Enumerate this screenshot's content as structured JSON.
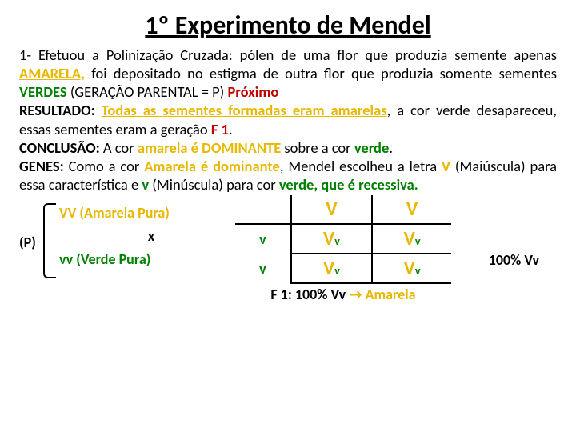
{
  "title": "1º Experimento de Mendel",
  "para": {
    "p1a": "1- Efetuou a Polinização Cruzada: pólen de uma flor que produzia semente apenas ",
    "amarela": "AMARELA,",
    "p1b": " foi depositado no estigma de outra flor que produzia somente sementes ",
    "verdes": "VERDES",
    "p1c": " (GERAÇÃO PARENTAL = P) ",
    "proximo": "Próximo",
    "res_lbl": "RESULTADO: ",
    "res_a": "Todas as sementes formadas eram amarelas",
    "res_b": ", a cor verde desapareceu, essas sementes eram a geração ",
    "f1": "F 1",
    "dot1": ".",
    "con_lbl": "CONCLUSÃO:",
    "con_a": " A cor ",
    "con_b": "amarela é DOMINANTE",
    "con_c": " sobre a cor ",
    "con_d": "verde",
    "gen_lbl": "GENES:",
    "gen_a": " Como a cor ",
    "gen_b": "Amarela é dominante",
    "gen_c": ", Mendel escolheu a letra ",
    "gen_d": "V",
    "gen_e": " (Maiúscula) para essa característica e ",
    "gen_f": "v",
    "gen_g": " (Minúscula) para cor ",
    "gen_h": "verde, que é recessiva."
  },
  "cross": {
    "p_label": "(P)",
    "line1": "VV (Amarela Pura)",
    "x": "x",
    "line2": "vv (Verde Pura)"
  },
  "punnett": {
    "col1": "V",
    "col2": "V",
    "row1": "v",
    "row2": "v",
    "cell_big": "V",
    "cell_small": "v",
    "f1_label": "F 1: 100% Vv ",
    "arrow": "→",
    "f1_res": " Amarela",
    "side": "100% Vv"
  },
  "colors": {
    "amarela": "#e6b800",
    "verde": "#008000",
    "vermelho": "#c00000",
    "text": "#000000",
    "bg": "#ffffff"
  }
}
